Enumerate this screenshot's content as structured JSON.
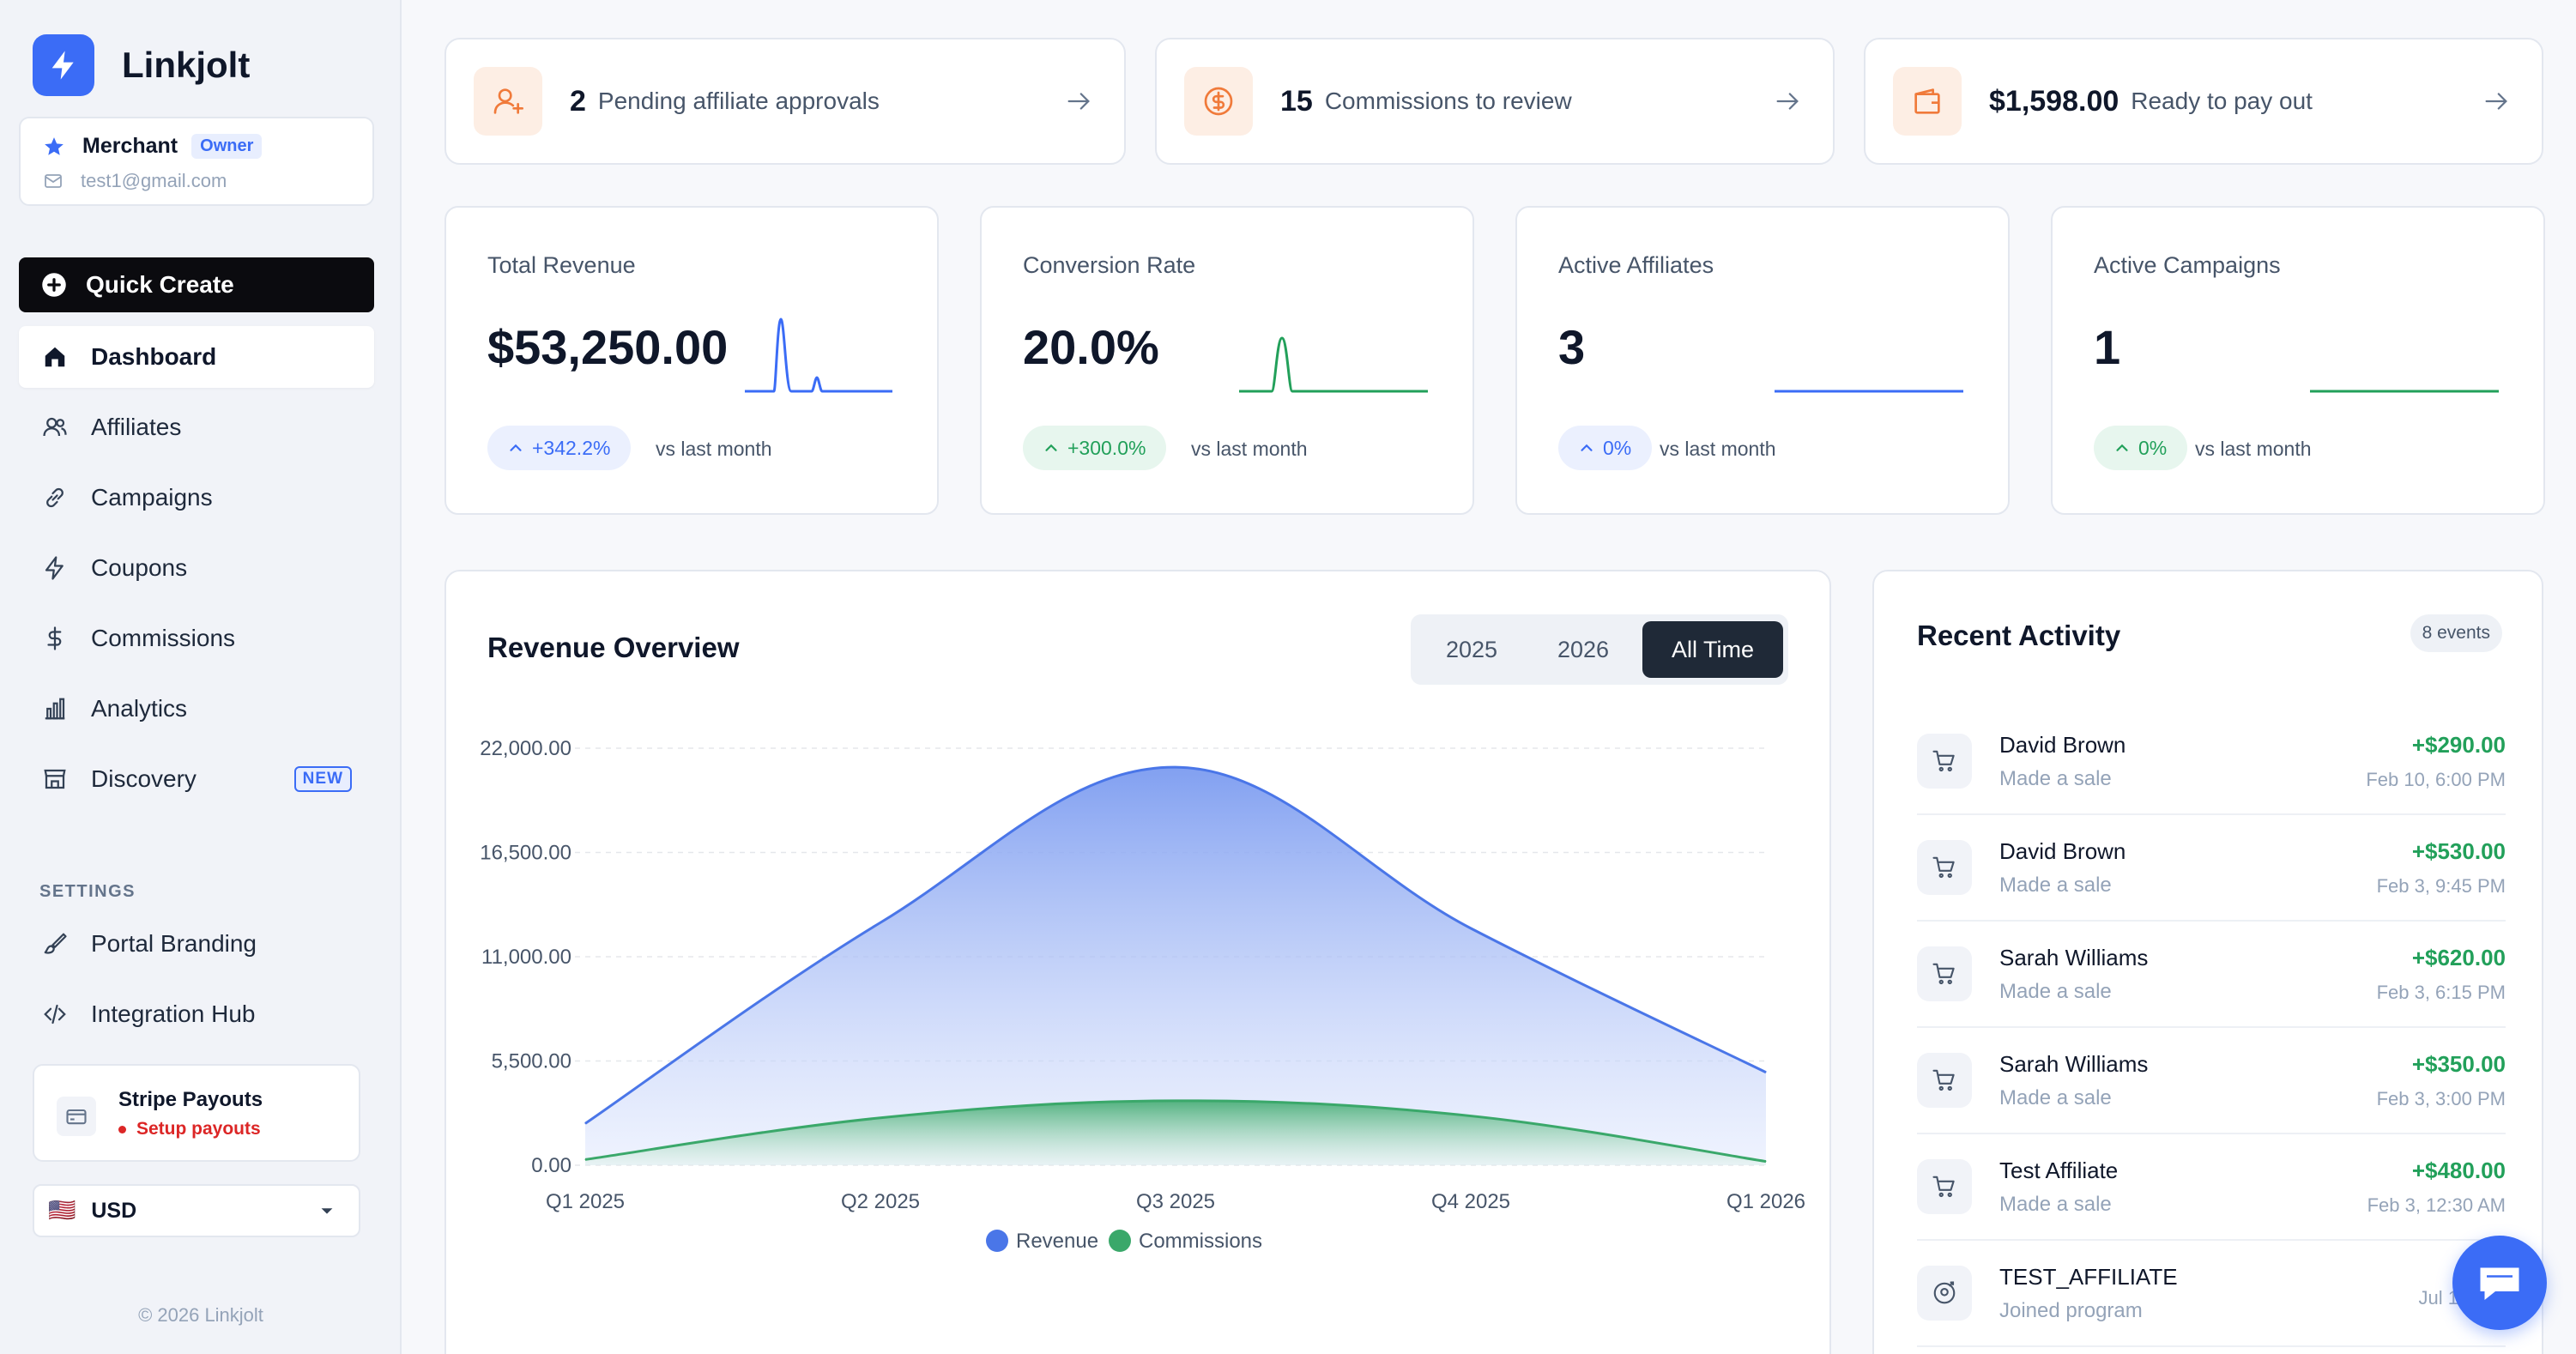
{
  "brand": {
    "name": "Linkjolt",
    "logo_icon": "bolt-icon",
    "accent": "#3b6cf6"
  },
  "account": {
    "name": "Merchant",
    "role": "Owner",
    "email": "test1@gmail.com"
  },
  "sidebar": {
    "quick_create": "Quick Create",
    "items": [
      {
        "label": "Dashboard",
        "icon": "home-icon",
        "active": true
      },
      {
        "label": "Affiliates",
        "icon": "users-icon"
      },
      {
        "label": "Campaigns",
        "icon": "link-icon"
      },
      {
        "label": "Coupons",
        "icon": "bolt-icon"
      },
      {
        "label": "Commissions",
        "icon": "dollar-icon"
      },
      {
        "label": "Analytics",
        "icon": "bar-chart-icon"
      },
      {
        "label": "Discovery",
        "icon": "store-icon",
        "badge": "NEW"
      }
    ],
    "settings_heading": "SETTINGS",
    "settings_items": [
      {
        "label": "Portal Branding",
        "icon": "brush-icon"
      },
      {
        "label": "Integration Hub",
        "icon": "code-icon"
      }
    ],
    "stripe": {
      "title": "Stripe Payouts",
      "status": "Setup payouts"
    },
    "currency": {
      "flag": "🇺🇸",
      "value": "USD"
    },
    "footer": "© 2026 Linkjolt"
  },
  "alerts": [
    {
      "number": "2",
      "text": "Pending affiliate approvals",
      "icon": "user-plus-icon"
    },
    {
      "number": "15",
      "text": "Commissions to review",
      "icon": "coin-icon"
    },
    {
      "number": "$1,598.00",
      "text": "Ready to pay out",
      "icon": "wallet-icon"
    }
  ],
  "stats": [
    {
      "label": "Total Revenue",
      "value": "$53,250.00",
      "change": "+342.2%",
      "vs": "vs last month",
      "tone": "blue",
      "spark_color": "#3b6cf6"
    },
    {
      "label": "Conversion Rate",
      "value": "20.0%",
      "change": "+300.0%",
      "vs": "vs last month",
      "tone": "green",
      "spark_color": "#22a05a"
    },
    {
      "label": "Active Affiliates",
      "value": "3",
      "change": "0%",
      "vs": "vs last month",
      "tone": "blue",
      "spark_color": "#3b6cf6"
    },
    {
      "label": "Active Campaigns",
      "value": "1",
      "change": "0%",
      "vs": "vs last month",
      "tone": "green",
      "spark_color": "#22a05a"
    }
  ],
  "overview": {
    "title": "Revenue Overview",
    "ranges": [
      "2025",
      "2026",
      "All Time"
    ],
    "selected_range": "All Time"
  },
  "chart_data": {
    "type": "area",
    "x": [
      "Q1 2025",
      "Q2 2025",
      "Q3 2025",
      "Q4 2025",
      "Q1 2026"
    ],
    "series": [
      {
        "name": "Revenue",
        "color": "#4a76e8",
        "values": [
          2200,
          12800,
          21000,
          12500,
          4900
        ]
      },
      {
        "name": "Commissions",
        "color": "#3aa86a",
        "values": [
          300,
          2500,
          3400,
          2600,
          200
        ]
      }
    ],
    "y_ticks": [
      "22,000.00",
      "16,500.00",
      "11,000.00",
      "5,500.00",
      "0.00"
    ],
    "ylim": [
      0,
      22000
    ],
    "grid": true,
    "legend": "bottom"
  },
  "activity": {
    "title": "Recent Activity",
    "badge": "8 events",
    "items": [
      {
        "name": "David Brown",
        "sub": "Made a sale",
        "amount": "+$290.00",
        "time": "Feb 10, 6:00 PM",
        "icon": "cart-icon"
      },
      {
        "name": "David Brown",
        "sub": "Made a sale",
        "amount": "+$530.00",
        "time": "Feb 3, 9:45 PM",
        "icon": "cart-icon"
      },
      {
        "name": "Sarah Williams",
        "sub": "Made a sale",
        "amount": "+$620.00",
        "time": "Feb 3, 6:15 PM",
        "icon": "cart-icon"
      },
      {
        "name": "Sarah Williams",
        "sub": "Made a sale",
        "amount": "+$350.00",
        "time": "Feb 3, 3:00 PM",
        "icon": "cart-icon"
      },
      {
        "name": "Test Affiliate",
        "sub": "Made a sale",
        "amount": "+$480.00",
        "time": "Feb 3, 12:30 AM",
        "icon": "cart-icon"
      },
      {
        "name": "TEST_AFFILIATE",
        "sub": "Joined program",
        "amount": "",
        "time": "Jul 16, 3:1",
        "icon": "user-add-icon"
      }
    ]
  },
  "chat": {
    "icon": "chat-icon"
  }
}
